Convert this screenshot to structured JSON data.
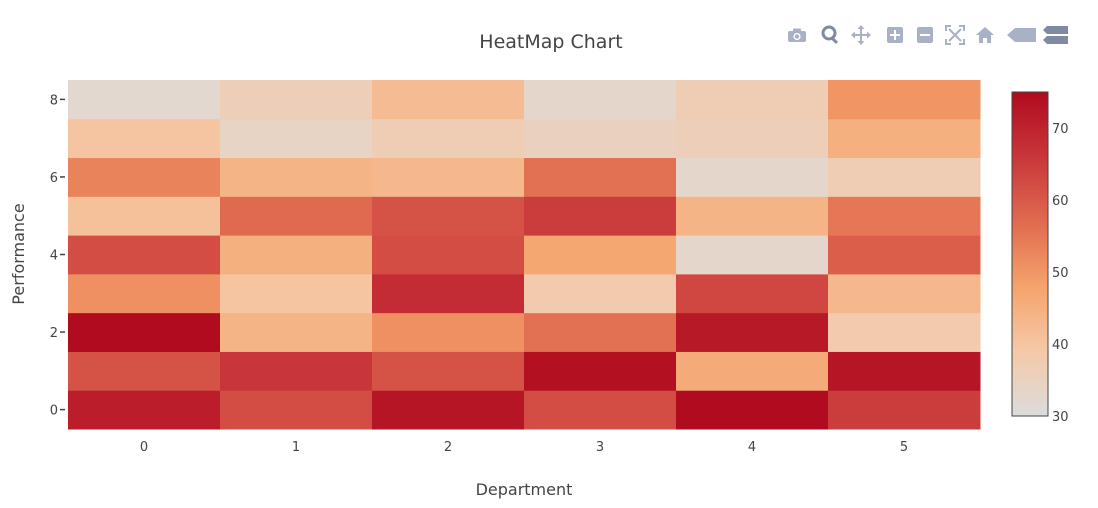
{
  "colors": {
    "modebar_icon": "#a9b1c6",
    "modebar_icon_dark": "#7f8aa3",
    "axis_text": "#444444",
    "colorscale": [
      "#dcdcdc",
      "#f5c9a8",
      "#f5a36b",
      "#e06a50",
      "#c8363a",
      "#b00b1e"
    ]
  },
  "modebar": [
    {
      "icon": "camera-icon",
      "label": "Download plot as a png"
    },
    {
      "icon": "zoom-icon",
      "label": "Zoom"
    },
    {
      "icon": "pan-icon",
      "label": "Pan"
    },
    {
      "icon": "zoom-in-icon",
      "label": "Zoom in"
    },
    {
      "icon": "zoom-out-icon",
      "label": "Zoom out"
    },
    {
      "icon": "autoscale-icon",
      "label": "Autoscale"
    },
    {
      "icon": "home-icon",
      "label": "Reset axes"
    },
    {
      "icon": "hover-closest-icon",
      "label": "Show closest data on hover"
    },
    {
      "icon": "hover-compare-icon",
      "label": "Compare data on hover"
    }
  ],
  "chart_data": {
    "type": "heatmap",
    "title": "HeatMap Chart",
    "xlabel": "Department",
    "ylabel": "Performance",
    "x": [
      0,
      1,
      2,
      3,
      4,
      5
    ],
    "y": [
      0,
      1,
      2,
      3,
      4,
      5,
      6,
      7,
      8
    ],
    "x_ticks": [
      "0",
      "1",
      "2",
      "3",
      "4",
      "5"
    ],
    "y_ticks": [
      "0",
      "2",
      "4",
      "6",
      "8"
    ],
    "z": [
      [
        71,
        62,
        73,
        62,
        75,
        65
      ],
      [
        61,
        66,
        61,
        74,
        46,
        73
      ],
      [
        75,
        44,
        51,
        56,
        72,
        38
      ],
      [
        51,
        40,
        68,
        38,
        63,
        43
      ],
      [
        62,
        45,
        62,
        47,
        33,
        59
      ],
      [
        41,
        57,
        61,
        65,
        44,
        55
      ],
      [
        53,
        44,
        43,
        56,
        33,
        37
      ],
      [
        40,
        34,
        37,
        35,
        36,
        45
      ],
      [
        32,
        36,
        42,
        33,
        37,
        50
      ]
    ],
    "zlim": [
      30,
      75
    ],
    "colorbar_ticks": [
      30,
      40,
      50,
      60,
      70
    ],
    "colorscale": "RdBu-reversed (warm half)",
    "grid": false,
    "legend": "colorbar-right"
  }
}
